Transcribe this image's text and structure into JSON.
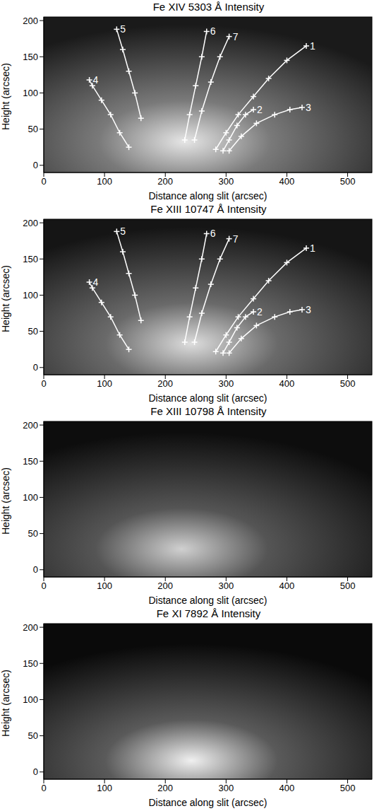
{
  "chart_data": [
    {
      "type": "line",
      "title": "Fe XIV 5303 Å Intensity",
      "x_label": "Distance along slit (arcsec)",
      "y_label": "Height (arcsec)",
      "xlim": [
        0,
        540
      ],
      "ylim": [
        -10,
        205
      ],
      "xticks": [
        0,
        100,
        200,
        300,
        400,
        500
      ],
      "yticks": [
        0,
        50,
        100,
        150,
        200
      ],
      "grid": false,
      "series": [
        {
          "name": "1",
          "color": "#ffffff",
          "marker": "plus",
          "x": [
            283,
            300,
            320,
            345,
            370,
            400,
            432
          ],
          "values": [
            22,
            45,
            70,
            95,
            120,
            145,
            165
          ]
        },
        {
          "name": "2",
          "color": "#ffffff",
          "marker": "plus",
          "x": [
            295,
            305,
            318,
            332,
            345
          ],
          "values": [
            20,
            35,
            55,
            70,
            77
          ]
        },
        {
          "name": "3",
          "color": "#ffffff",
          "marker": "plus",
          "x": [
            305,
            325,
            350,
            380,
            405,
            425
          ],
          "values": [
            20,
            40,
            58,
            70,
            77,
            80
          ]
        },
        {
          "name": "4",
          "color": "#ffffff",
          "marker": "plus",
          "x": [
            140,
            125,
            110,
            95,
            80,
            75
          ],
          "values": [
            25,
            45,
            70,
            90,
            110,
            118
          ]
        },
        {
          "name": "5",
          "color": "#ffffff",
          "marker": "plus",
          "x": [
            160,
            150,
            140,
            130,
            120
          ],
          "values": [
            65,
            100,
            130,
            160,
            188
          ]
        },
        {
          "name": "6",
          "color": "#ffffff",
          "marker": "plus",
          "x": [
            232,
            240,
            250,
            260,
            268
          ],
          "values": [
            35,
            70,
            110,
            150,
            185
          ]
        },
        {
          "name": "7",
          "color": "#ffffff",
          "marker": "plus",
          "x": [
            248,
            260,
            275,
            290,
            305
          ],
          "values": [
            35,
            75,
            115,
            150,
            178
          ]
        }
      ]
    },
    {
      "type": "line",
      "title": "Fe XIII 10747 Å Intensity",
      "x_label": "Distance along slit (arcsec)",
      "y_label": "Height (arcsec)",
      "xlim": [
        0,
        540
      ],
      "ylim": [
        -10,
        205
      ],
      "xticks": [
        0,
        100,
        200,
        300,
        400,
        500
      ],
      "yticks": [
        0,
        50,
        100,
        150,
        200
      ],
      "grid": false,
      "series": [
        {
          "name": "1",
          "color": "#ffffff",
          "marker": "plus",
          "x": [
            283,
            300,
            320,
            345,
            370,
            400,
            432
          ],
          "values": [
            22,
            45,
            70,
            95,
            120,
            145,
            165
          ]
        },
        {
          "name": "2",
          "color": "#ffffff",
          "marker": "plus",
          "x": [
            295,
            305,
            318,
            332,
            345
          ],
          "values": [
            20,
            35,
            55,
            70,
            77
          ]
        },
        {
          "name": "3",
          "color": "#ffffff",
          "marker": "plus",
          "x": [
            305,
            325,
            350,
            380,
            405,
            425
          ],
          "values": [
            20,
            40,
            58,
            70,
            77,
            80
          ]
        },
        {
          "name": "4",
          "color": "#ffffff",
          "marker": "plus",
          "x": [
            140,
            125,
            110,
            95,
            80,
            75
          ],
          "values": [
            25,
            45,
            70,
            90,
            110,
            118
          ]
        },
        {
          "name": "5",
          "color": "#ffffff",
          "marker": "plus",
          "x": [
            160,
            150,
            140,
            130,
            120
          ],
          "values": [
            65,
            100,
            130,
            160,
            188
          ]
        },
        {
          "name": "6",
          "color": "#ffffff",
          "marker": "plus",
          "x": [
            232,
            240,
            250,
            260,
            268
          ],
          "values": [
            35,
            70,
            110,
            150,
            185
          ]
        },
        {
          "name": "7",
          "color": "#ffffff",
          "marker": "plus",
          "x": [
            248,
            260,
            275,
            290,
            305
          ],
          "values": [
            35,
            75,
            115,
            150,
            178
          ]
        }
      ]
    },
    {
      "type": "line",
      "title": "Fe XIII 10798 Å Intensity",
      "x_label": "Distance along slit (arcsec)",
      "y_label": "Height (arcsec)",
      "xlim": [
        0,
        540
      ],
      "ylim": [
        -10,
        205
      ],
      "xticks": [
        0,
        100,
        200,
        300,
        400,
        500
      ],
      "yticks": [
        0,
        50,
        100,
        150,
        200
      ],
      "grid": false,
      "series": []
    },
    {
      "type": "line",
      "title": "Fe XI 7892 Å Intensity",
      "x_label": "Distance along slit (arcsec)",
      "y_label": "Height (arcsec)",
      "xlim": [
        0,
        540
      ],
      "ylim": [
        -10,
        205
      ],
      "xticks": [
        0,
        100,
        200,
        300,
        400,
        500
      ],
      "yticks": [
        0,
        50,
        100,
        150,
        200
      ],
      "grid": false,
      "series": []
    }
  ]
}
